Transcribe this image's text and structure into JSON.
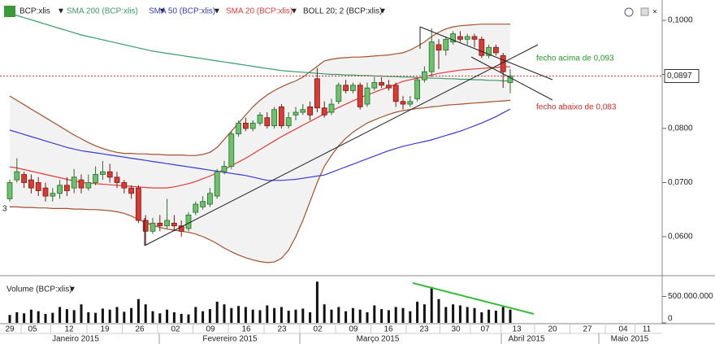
{
  "chart_data": {
    "type": "candlestick",
    "symbol": "BCP:xlis",
    "up_color": "#6cc16c",
    "down_color": "#d93a32",
    "ylim": [
      0.05293,
      0.10376
    ],
    "yticks": [
      {
        "value": 0.1,
        "label": "0,1000"
      },
      {
        "value": 0.09,
        "label": "0,0900"
      },
      {
        "value": 0.08,
        "label": "0,0800"
      },
      {
        "value": 0.07,
        "label": "0,0700"
      },
      {
        "value": 0.06,
        "label": "0,0600"
      }
    ],
    "last_price": {
      "value": 0.0897,
      "label": "0,0897"
    },
    "x_labels": [
      "29",
      "05",
      "12",
      "19",
      "26",
      "02",
      "09",
      "16",
      "23",
      "02",
      "09",
      "16",
      "23",
      "30",
      "07",
      "13",
      "20",
      "27",
      "04",
      "11"
    ],
    "months": [
      "Janeiro 2015",
      "Fevereiro 2015",
      "Março 2015",
      "Abril 2015",
      "Maio 2015"
    ],
    "edge_label": "3",
    "open": [
      0.067,
      0.0705,
      0.0715,
      0.0705,
      0.07,
      0.069,
      0.0675,
      0.068,
      0.0695,
      0.069,
      0.0705,
      0.069,
      0.07,
      0.0715,
      0.072,
      0.071,
      0.07,
      0.069,
      0.069,
      0.063,
      0.061,
      0.0625,
      0.062,
      0.0625,
      0.062,
      0.0615,
      0.0645,
      0.0655,
      0.066,
      0.0675,
      0.072,
      0.073,
      0.079,
      0.081,
      0.08,
      0.081,
      0.082,
      0.0805,
      0.084,
      0.0805,
      0.0825,
      0.083,
      0.084,
      0.0892,
      0.0838,
      0.083,
      0.085,
      0.088,
      0.087,
      0.088,
      0.0845,
      0.0875,
      0.0885,
      0.088,
      0.088,
      0.085,
      0.0845,
      0.0855,
      0.089,
      0.0905,
      0.0955,
      0.0945,
      0.096,
      0.097,
      0.0965,
      0.097,
      0.0965,
      0.0935,
      0.095,
      0.0935,
      0.0885
    ],
    "high": [
      0.0705,
      0.0745,
      0.072,
      0.0715,
      0.071,
      0.07,
      0.069,
      0.0705,
      0.071,
      0.0725,
      0.0715,
      0.0715,
      0.073,
      0.074,
      0.0735,
      0.072,
      0.0705,
      0.0695,
      0.0695,
      0.064,
      0.0635,
      0.064,
      0.067,
      0.064,
      0.063,
      0.0645,
      0.0665,
      0.0675,
      0.069,
      0.0725,
      0.074,
      0.0795,
      0.0815,
      0.082,
      0.0815,
      0.083,
      0.083,
      0.084,
      0.0845,
      0.083,
      0.084,
      0.0845,
      0.085,
      0.0912,
      0.085,
      0.0855,
      0.0885,
      0.089,
      0.0885,
      0.0885,
      0.0885,
      0.0895,
      0.0895,
      0.089,
      0.0885,
      0.086,
      0.086,
      0.0895,
      0.0915,
      0.0985,
      0.0965,
      0.097,
      0.098,
      0.098,
      0.0975,
      0.0975,
      0.097,
      0.0955,
      0.0955,
      0.094,
      0.091
    ],
    "low": [
      0.0665,
      0.07,
      0.069,
      0.068,
      0.0675,
      0.0665,
      0.0665,
      0.067,
      0.0675,
      0.068,
      0.068,
      0.0685,
      0.0695,
      0.0705,
      0.07,
      0.069,
      0.068,
      0.067,
      0.0625,
      0.0585,
      0.0605,
      0.061,
      0.0615,
      0.061,
      0.06,
      0.061,
      0.064,
      0.065,
      0.0655,
      0.067,
      0.0715,
      0.0725,
      0.0785,
      0.0795,
      0.0795,
      0.0805,
      0.08,
      0.08,
      0.08,
      0.08,
      0.0815,
      0.0825,
      0.0815,
      0.083,
      0.082,
      0.0825,
      0.0845,
      0.0865,
      0.0865,
      0.0835,
      0.084,
      0.087,
      0.0875,
      0.087,
      0.084,
      0.0835,
      0.084,
      0.085,
      0.0885,
      0.0895,
      0.091,
      0.0935,
      0.0955,
      0.096,
      0.0955,
      0.095,
      0.093,
      0.093,
      0.0935,
      0.0875,
      0.0865
    ],
    "close": [
      0.07,
      0.072,
      0.07,
      0.069,
      0.0685,
      0.0675,
      0.068,
      0.0695,
      0.0685,
      0.071,
      0.069,
      0.07,
      0.0715,
      0.072,
      0.071,
      0.07,
      0.069,
      0.068,
      0.063,
      0.061,
      0.0625,
      0.062,
      0.063,
      0.062,
      0.061,
      0.064,
      0.066,
      0.0665,
      0.068,
      0.072,
      0.073,
      0.079,
      0.081,
      0.08,
      0.081,
      0.0825,
      0.0805,
      0.0835,
      0.0805,
      0.082,
      0.083,
      0.0835,
      0.0825,
      0.0838,
      0.0825,
      0.0845,
      0.088,
      0.087,
      0.088,
      0.084,
      0.0875,
      0.0885,
      0.088,
      0.0875,
      0.085,
      0.0845,
      0.085,
      0.089,
      0.0905,
      0.096,
      0.0945,
      0.0965,
      0.0975,
      0.0965,
      0.097,
      0.0965,
      0.0935,
      0.095,
      0.094,
      0.0905,
      0.0897
    ],
    "series": [
      {
        "name": "SMA 200 (BCP:xlis)",
        "color": "#3a9a6a",
        "values": [
          0.1013,
          0.1009,
          0.1005,
          0.1001,
          0.0997,
          0.0993,
          0.0989,
          0.0985,
          0.0981,
          0.0977,
          0.0973,
          0.097,
          0.0967,
          0.0964,
          0.0961,
          0.0958,
          0.0955,
          0.0952,
          0.0949,
          0.0946,
          0.0943,
          0.0941,
          0.0939,
          0.0937,
          0.0935,
          0.0933,
          0.0931,
          0.0929,
          0.0927,
          0.0925,
          0.0923,
          0.0921,
          0.0919,
          0.0917,
          0.0915,
          0.0913,
          0.0911,
          0.0909,
          0.0907,
          0.0906,
          0.0905,
          0.0904,
          0.0903,
          0.0902,
          0.0901,
          0.09,
          0.09,
          0.0899,
          0.0899,
          0.0898,
          0.0898,
          0.0897,
          0.0897,
          0.0896,
          0.0896,
          0.0895,
          0.0895,
          0.0894,
          0.0894,
          0.0893,
          0.0893,
          0.0892,
          0.0892,
          0.0891,
          0.0891,
          0.089,
          0.089,
          0.0889,
          0.0889,
          0.0888,
          0.0888
        ]
      },
      {
        "name": "SMA 50 (BCP:xlis)",
        "color": "#3a3ad0",
        "values": [
          0.0797,
          0.0793,
          0.0789,
          0.0785,
          0.0781,
          0.0777,
          0.0773,
          0.0769,
          0.0765,
          0.0762,
          0.0759,
          0.0757,
          0.0755,
          0.0753,
          0.0751,
          0.0749,
          0.0747,
          0.0745,
          0.0743,
          0.0741,
          0.0739,
          0.0737,
          0.0735,
          0.0733,
          0.0731,
          0.0729,
          0.0727,
          0.0725,
          0.0723,
          0.0721,
          0.0719,
          0.0717,
          0.0715,
          0.0713,
          0.071,
          0.0707,
          0.0704,
          0.0704,
          0.0704,
          0.0705,
          0.0706,
          0.0708,
          0.071,
          0.0712,
          0.0714,
          0.0719,
          0.0724,
          0.0729,
          0.0734,
          0.0739,
          0.0744,
          0.0749,
          0.0754,
          0.0759,
          0.0763,
          0.0767,
          0.077,
          0.0773,
          0.0776,
          0.0779,
          0.0783,
          0.0787,
          0.0791,
          0.0795,
          0.08,
          0.0805,
          0.081,
          0.0816,
          0.0822,
          0.0829,
          0.0836
        ]
      },
      {
        "name": "SMA 20 (BCP:xlis)",
        "color": "#e23a3a",
        "values": [
          0.0729,
          0.0727,
          0.0724,
          0.0721,
          0.0718,
          0.0715,
          0.0712,
          0.0709,
          0.0706,
          0.0703,
          0.07,
          0.0699,
          0.0698,
          0.0697,
          0.0696,
          0.0695,
          0.0694,
          0.0693,
          0.0692,
          0.0691,
          0.069,
          0.069,
          0.069,
          0.0692,
          0.0695,
          0.0698,
          0.0702,
          0.0707,
          0.0712,
          0.0718,
          0.0724,
          0.0731,
          0.0738,
          0.0745,
          0.0753,
          0.0761,
          0.0769,
          0.0777,
          0.0785,
          0.0792,
          0.0799,
          0.0806,
          0.0813,
          0.082,
          0.0827,
          0.0833,
          0.0839,
          0.0845,
          0.0851,
          0.0857,
          0.0862,
          0.0867,
          0.0872,
          0.0877,
          0.0882,
          0.0887,
          0.089,
          0.0893,
          0.0896,
          0.0899,
          0.0902,
          0.0904,
          0.0906,
          0.0908,
          0.0909,
          0.091,
          0.0911,
          0.0912,
          0.0913,
          0.0914,
          0.0914
        ]
      }
    ],
    "bollinger": {
      "name": "BOLL 20; 2 (BCP:xlis)",
      "color": "#a0522d",
      "fill": "#f2f2f2",
      "upper": [
        0.086,
        0.0852,
        0.0844,
        0.0836,
        0.0828,
        0.082,
        0.0812,
        0.0804,
        0.0796,
        0.0788,
        0.0781,
        0.0774,
        0.0768,
        0.0763,
        0.0759,
        0.0756,
        0.0754,
        0.0754,
        0.0753,
        0.0753,
        0.0752,
        0.0752,
        0.0751,
        0.0751,
        0.0751,
        0.075,
        0.075,
        0.0752,
        0.0756,
        0.0765,
        0.078,
        0.0795,
        0.081,
        0.0825,
        0.084,
        0.0852,
        0.0862,
        0.087,
        0.0877,
        0.0883,
        0.0888,
        0.0895,
        0.0905,
        0.0915,
        0.0925,
        0.0928,
        0.093,
        0.0931,
        0.0932,
        0.0932,
        0.0933,
        0.0934,
        0.0935,
        0.0936,
        0.0938,
        0.094,
        0.0945,
        0.0952,
        0.096,
        0.097,
        0.0978,
        0.0984,
        0.0988,
        0.099,
        0.0991,
        0.0992,
        0.0993,
        0.0993,
        0.0993,
        0.0993,
        0.0993
      ],
      "lower": [
        0.0655,
        0.0655,
        0.0654,
        0.0654,
        0.0653,
        0.0653,
        0.0652,
        0.0652,
        0.0652,
        0.0651,
        0.0651,
        0.065,
        0.065,
        0.0649,
        0.0648,
        0.0646,
        0.0643,
        0.0638,
        0.0632,
        0.0626,
        0.0621,
        0.0617,
        0.0614,
        0.0612,
        0.061,
        0.0608,
        0.0605,
        0.06,
        0.0594,
        0.0587,
        0.0579,
        0.0572,
        0.0566,
        0.0561,
        0.0557,
        0.0554,
        0.0552,
        0.0553,
        0.056,
        0.0575,
        0.06,
        0.063,
        0.0665,
        0.07,
        0.073,
        0.075,
        0.0768,
        0.0782,
        0.0793,
        0.0802,
        0.081,
        0.0816,
        0.0821,
        0.0826,
        0.083,
        0.0833,
        0.0835,
        0.0837,
        0.0838,
        0.084,
        0.0841,
        0.0843,
        0.0844,
        0.0845,
        0.0846,
        0.0847,
        0.0848,
        0.0849,
        0.085,
        0.0851,
        0.0852
      ]
    },
    "volume": {
      "name": "Volume (BCP:xlis)",
      "color": "#111111",
      "ylim": [
        0,
        800000000
      ],
      "yticks": [
        {
          "value": 500000000,
          "label": "500.000.000"
        },
        0
      ],
      "values": [
        150000000,
        200000000,
        180000000,
        250000000,
        220000000,
        170000000,
        190000000,
        300000000,
        260000000,
        240000000,
        350000000,
        200000000,
        190000000,
        270000000,
        250000000,
        300000000,
        210000000,
        280000000,
        450000000,
        350000000,
        220000000,
        180000000,
        250000000,
        200000000,
        170000000,
        160000000,
        300000000,
        220000000,
        260000000,
        400000000,
        350000000,
        280000000,
        320000000,
        300000000,
        250000000,
        240000000,
        330000000,
        280000000,
        300000000,
        230000000,
        250000000,
        270000000,
        200000000,
        780000000,
        350000000,
        250000000,
        300000000,
        220000000,
        280000000,
        250000000,
        200000000,
        330000000,
        260000000,
        240000000,
        300000000,
        280000000,
        220000000,
        400000000,
        350000000,
        680000000,
        450000000,
        300000000,
        350000000,
        330000000,
        300000000,
        280000000,
        200000000,
        250000000,
        230000000,
        300000000,
        250000000
      ]
    },
    "annotations": [
      "fecho acima de 0,093",
      "fecho abaixo de 0,083"
    ]
  }
}
